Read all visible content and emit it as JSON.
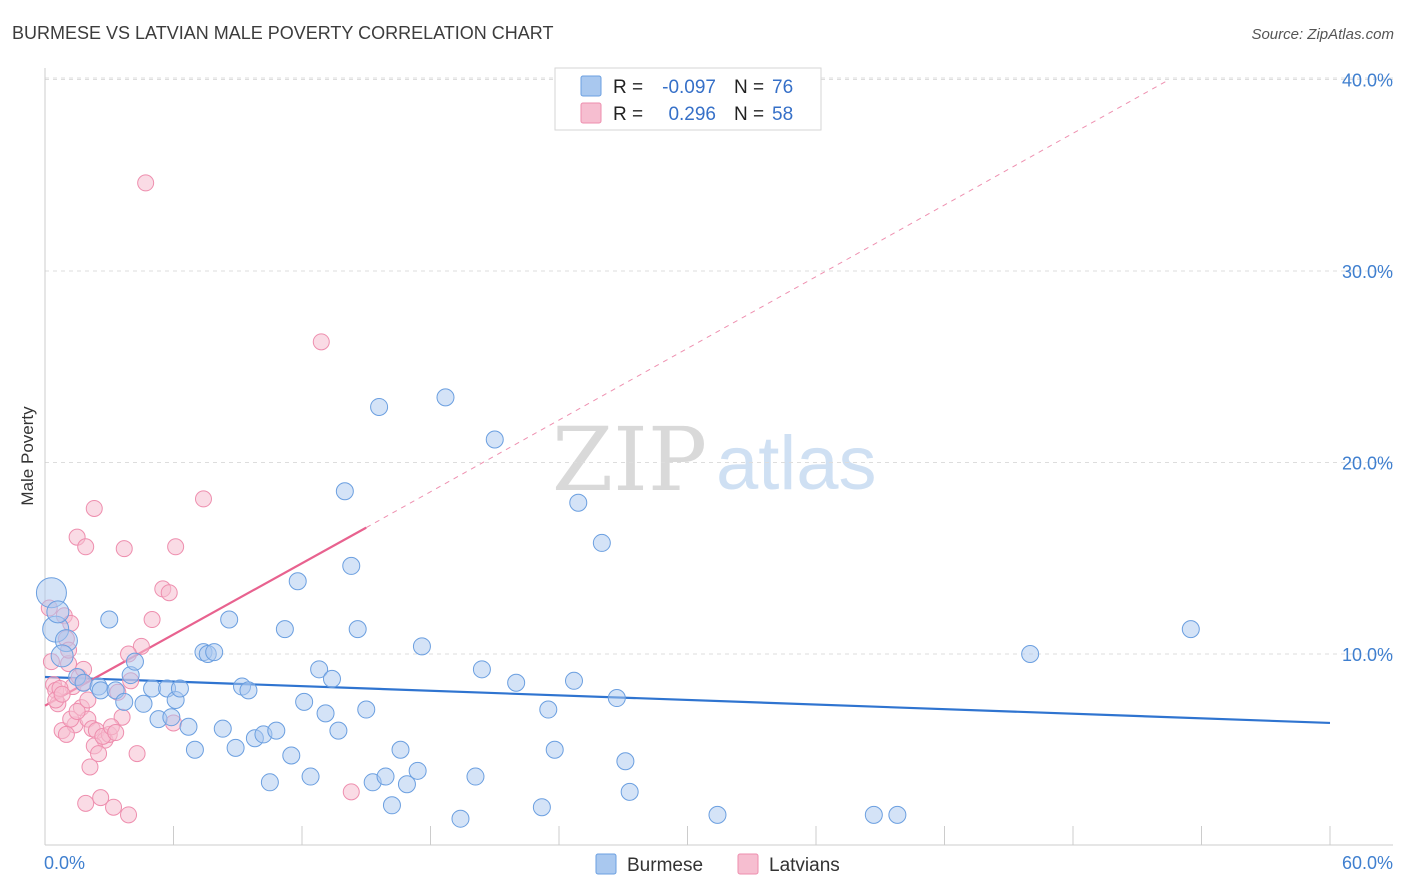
{
  "title": "BURMESE VS LATVIAN MALE POVERTY CORRELATION CHART",
  "source": "Source: ZipAtlas.com",
  "watermark": {
    "zip": "ZIP",
    "atlas": "atlas"
  },
  "legend": {
    "rows": [
      {
        "r_label": "R =",
        "r_value": "-0.097",
        "n_label": "N =",
        "n_value": "76",
        "color": "#7aaef0"
      },
      {
        "r_label": "R =",
        "r_value": "0.296",
        "n_label": "N =",
        "n_value": "58",
        "color": "#f49ab8"
      }
    ]
  },
  "bottom_legend": {
    "burmese": "Burmese",
    "latvians": "Latvians"
  },
  "colors": {
    "burmese_fill": "#a9c8ef",
    "burmese_stroke": "#6b9fe0",
    "burmese_line": "#2f74d0",
    "latvian_fill": "#f6bed0",
    "latvian_stroke": "#ee8eae",
    "latvian_line": "#e8628f",
    "grid": "#dddddd",
    "axis": "#cccccc"
  },
  "chart_data": {
    "type": "scatter",
    "title": "BURMESE VS LATVIAN MALE POVERTY CORRELATION CHART",
    "xlabel": "",
    "ylabel": "Male Poverty",
    "xlim": [
      0,
      60
    ],
    "ylim": [
      0,
      42
    ],
    "x_tick_labels": [
      "0.0%",
      "60.0%"
    ],
    "y_ticks": [
      10,
      20,
      30,
      40
    ],
    "y_tick_labels": [
      "10.0%",
      "20.0%",
      "30.0%",
      "40.0%"
    ],
    "grid": "horizontal dashed",
    "legend_placement": "top-center",
    "series": [
      {
        "name": "Burmese",
        "r": -0.097,
        "n": 76,
        "trend": {
          "x": [
            0,
            60
          ],
          "y": [
            8.8,
            6.4
          ]
        },
        "points": [
          [
            0.3,
            13.2
          ],
          [
            0.5,
            11.3
          ],
          [
            1.0,
            10.7
          ],
          [
            0.8,
            9.9
          ],
          [
            1.5,
            8.8
          ],
          [
            1.8,
            8.5
          ],
          [
            2.5,
            8.3
          ],
          [
            2.6,
            8.1
          ],
          [
            3.0,
            11.8
          ],
          [
            3.3,
            8.1
          ],
          [
            3.7,
            7.5
          ],
          [
            4.0,
            8.9
          ],
          [
            4.2,
            9.6
          ],
          [
            4.6,
            7.4
          ],
          [
            5.0,
            8.2
          ],
          [
            5.3,
            6.6
          ],
          [
            5.7,
            8.2
          ],
          [
            5.9,
            6.7
          ],
          [
            6.1,
            7.6
          ],
          [
            6.3,
            8.2
          ],
          [
            6.7,
            6.2
          ],
          [
            7.0,
            5.0
          ],
          [
            7.4,
            10.1
          ],
          [
            7.6,
            10.0
          ],
          [
            7.9,
            10.1
          ],
          [
            8.3,
            6.1
          ],
          [
            8.6,
            11.8
          ],
          [
            8.9,
            5.1
          ],
          [
            9.2,
            8.3
          ],
          [
            9.5,
            8.1
          ],
          [
            9.8,
            5.6
          ],
          [
            10.2,
            5.8
          ],
          [
            10.5,
            3.3
          ],
          [
            10.8,
            6.0
          ],
          [
            11.2,
            11.3
          ],
          [
            11.5,
            4.7
          ],
          [
            11.8,
            13.8
          ],
          [
            12.1,
            7.5
          ],
          [
            12.4,
            3.6
          ],
          [
            12.8,
            9.2
          ],
          [
            13.1,
            6.9
          ],
          [
            13.4,
            8.7
          ],
          [
            13.7,
            6.0
          ],
          [
            14.0,
            18.5
          ],
          [
            14.3,
            14.6
          ],
          [
            14.6,
            11.3
          ],
          [
            15.0,
            7.1
          ],
          [
            15.3,
            3.3
          ],
          [
            15.6,
            22.9
          ],
          [
            15.9,
            3.6
          ],
          [
            16.2,
            2.1
          ],
          [
            16.6,
            5.0
          ],
          [
            16.9,
            3.2
          ],
          [
            17.4,
            3.9
          ],
          [
            17.6,
            10.4
          ],
          [
            18.7,
            23.4
          ],
          [
            19.4,
            1.4
          ],
          [
            20.1,
            3.6
          ],
          [
            20.4,
            9.2
          ],
          [
            21.0,
            21.2
          ],
          [
            22.0,
            8.5
          ],
          [
            23.2,
            2.0
          ],
          [
            23.5,
            7.1
          ],
          [
            23.8,
            5.0
          ],
          [
            24.7,
            8.6
          ],
          [
            24.9,
            17.9
          ],
          [
            26.0,
            15.8
          ],
          [
            26.7,
            7.7
          ],
          [
            27.1,
            4.4
          ],
          [
            27.3,
            2.8
          ],
          [
            31.4,
            1.6
          ],
          [
            38.7,
            1.6
          ],
          [
            39.8,
            1.6
          ],
          [
            46.0,
            10.0
          ],
          [
            53.5,
            11.3
          ],
          [
            0.6,
            12.2
          ]
        ]
      },
      {
        "name": "Latvians",
        "r": 0.296,
        "n": 58,
        "trend": {
          "x": [
            0,
            15
          ],
          "y": [
            7.3,
            16.6
          ]
        },
        "trend_extended": {
          "x": [
            15,
            52.5
          ],
          "y": [
            16.6,
            40.0
          ]
        },
        "points": [
          [
            0.2,
            12.4
          ],
          [
            0.3,
            9.6
          ],
          [
            0.4,
            8.4
          ],
          [
            0.5,
            8.1
          ],
          [
            0.6,
            7.4
          ],
          [
            0.8,
            6.0
          ],
          [
            0.9,
            12.0
          ],
          [
            1.0,
            10.8
          ],
          [
            1.1,
            9.5
          ],
          [
            1.2,
            11.6
          ],
          [
            1.3,
            8.3
          ],
          [
            1.4,
            6.3
          ],
          [
            1.6,
            8.8
          ],
          [
            1.7,
            7.2
          ],
          [
            1.8,
            9.2
          ],
          [
            1.9,
            2.2
          ],
          [
            2.0,
            6.6
          ],
          [
            2.1,
            4.1
          ],
          [
            2.2,
            6.1
          ],
          [
            2.4,
            6.0
          ],
          [
            2.6,
            2.5
          ],
          [
            2.8,
            5.5
          ],
          [
            3.0,
            5.8
          ],
          [
            3.2,
            2.0
          ],
          [
            3.4,
            8.0
          ],
          [
            3.6,
            6.7
          ],
          [
            3.9,
            1.6
          ],
          [
            4.3,
            4.8
          ],
          [
            4.7,
            34.6
          ],
          [
            5.0,
            11.8
          ],
          [
            5.5,
            13.4
          ],
          [
            5.8,
            13.2
          ],
          [
            6.1,
            15.6
          ],
          [
            7.4,
            18.1
          ],
          [
            12.9,
            26.3
          ],
          [
            14.3,
            2.8
          ],
          [
            1.5,
            16.1
          ],
          [
            1.9,
            15.6
          ],
          [
            2.3,
            17.6
          ],
          [
            3.7,
            15.5
          ],
          [
            4.5,
            10.4
          ],
          [
            3.9,
            10.0
          ],
          [
            0.5,
            7.6
          ],
          [
            0.7,
            8.2
          ],
          [
            1.0,
            5.8
          ],
          [
            1.2,
            6.6
          ],
          [
            1.5,
            7.0
          ],
          [
            1.8,
            8.5
          ],
          [
            2.0,
            7.6
          ],
          [
            2.3,
            5.2
          ],
          [
            2.5,
            4.8
          ],
          [
            2.7,
            5.7
          ],
          [
            3.1,
            6.2
          ],
          [
            3.3,
            5.9
          ],
          [
            0.8,
            7.9
          ],
          [
            1.1,
            10.2
          ],
          [
            4.0,
            8.6
          ],
          [
            6.0,
            6.4
          ]
        ]
      }
    ]
  }
}
